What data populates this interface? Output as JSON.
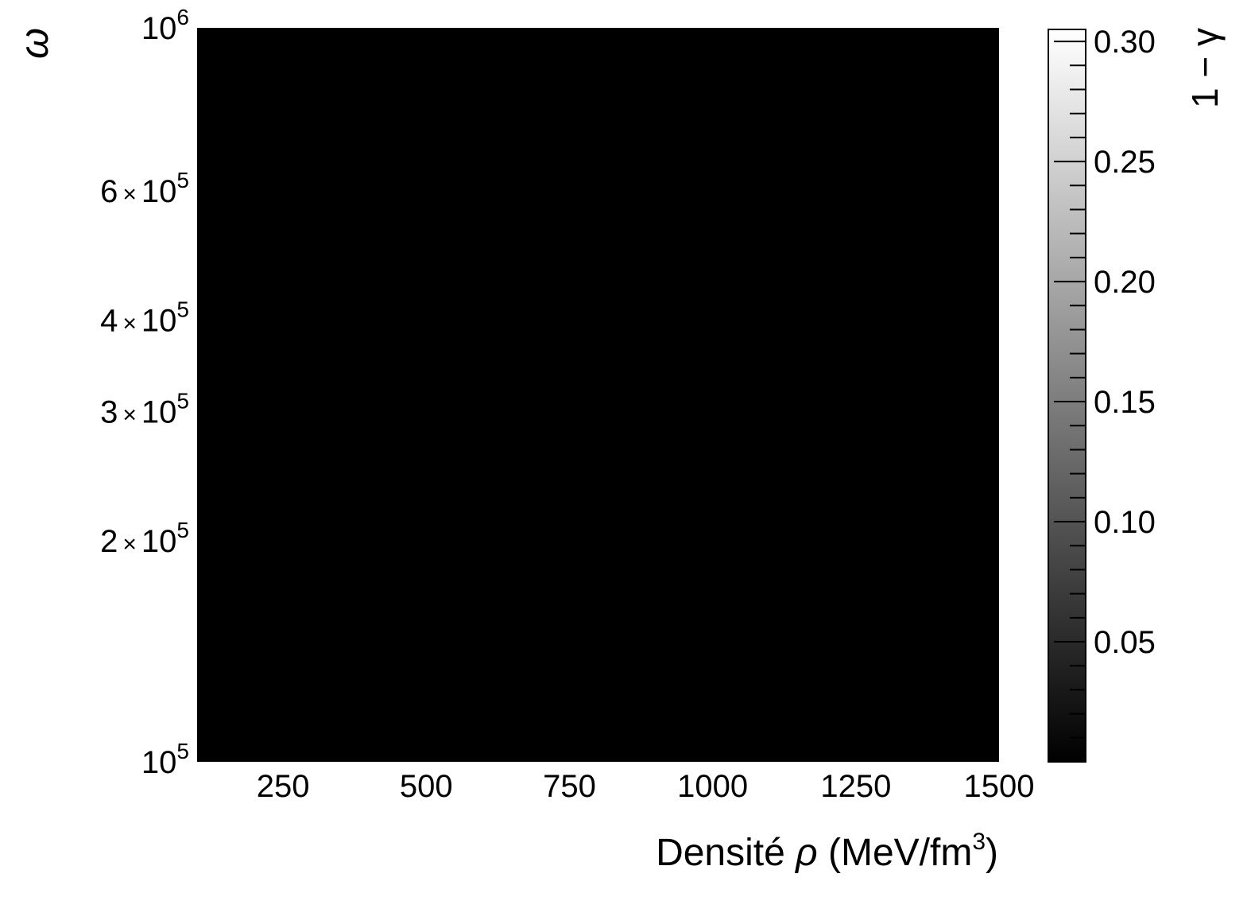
{
  "chart_data": {
    "type": "heatmap",
    "title": "",
    "xlabel_parts": {
      "prefix": "Densité ",
      "symbol": "ρ",
      "unit_start": " (MeV/fm",
      "unit_sup": "3",
      "unit_end": ")"
    },
    "ylabel": "ω",
    "colorbar_label": "1 − γ",
    "xlim": [
      100,
      1500
    ],
    "ylim": [
      100000,
      1000000
    ],
    "yscale": "log",
    "xticks": [
      {
        "value": 250,
        "label": "250"
      },
      {
        "value": 500,
        "label": "500"
      },
      {
        "value": 750,
        "label": "750"
      },
      {
        "value": 1000,
        "label": "1000"
      },
      {
        "value": 1250,
        "label": "1250"
      },
      {
        "value": 1500,
        "label": "1500"
      }
    ],
    "yticks": [
      {
        "value": 100000,
        "mant": "",
        "base": "10",
        "exp": "5"
      },
      {
        "value": 200000,
        "mant": "2",
        "base": "10",
        "exp": "5"
      },
      {
        "value": 300000,
        "mant": "3",
        "base": "10",
        "exp": "5"
      },
      {
        "value": 400000,
        "mant": "4",
        "base": "10",
        "exp": "5"
      },
      {
        "value": 600000,
        "mant": "6",
        "base": "10",
        "exp": "5"
      },
      {
        "value": 1000000,
        "mant": "",
        "base": "10",
        "exp": "6"
      }
    ],
    "colorbar": {
      "range": [
        0.0,
        0.305
      ],
      "colormap": "grayscale",
      "ticks": [
        {
          "value": 0.05,
          "label": "0.05"
        },
        {
          "value": 0.1,
          "label": "0.10"
        },
        {
          "value": 0.15,
          "label": "0.15"
        },
        {
          "value": 0.2,
          "label": "0.20"
        },
        {
          "value": 0.25,
          "label": "0.25"
        },
        {
          "value": 0.3,
          "label": "0.30"
        }
      ]
    },
    "z_uniform_value": 0.0,
    "fill_color": "#000000",
    "grid": false
  }
}
